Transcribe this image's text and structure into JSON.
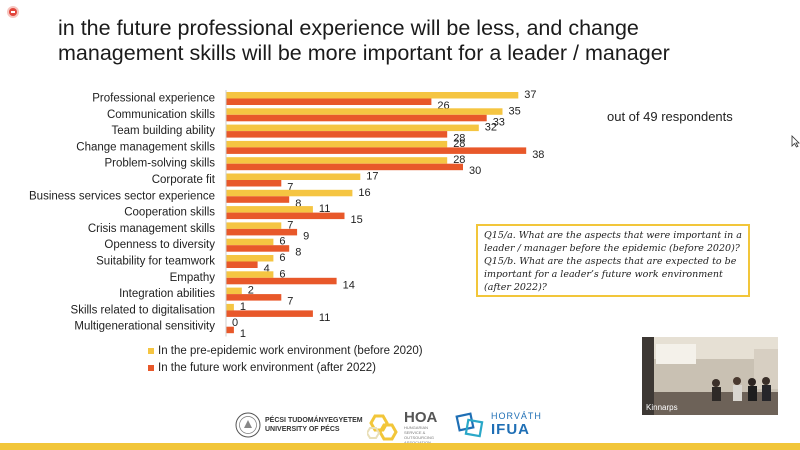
{
  "slide": {
    "title_line1": "in the future professional experience will be less, and change",
    "title_line2": "management skills will be more important for a leader / manager",
    "respondents_note": "out of 49 respondents",
    "question_a": "Q15/a. What are the aspects that were important in a leader / manager before the epidemic (before 2020)?",
    "question_b": "Q15/b. What are the aspects that are expected to be important for a leader’s future work environment (after 2022)?"
  },
  "chart_data": {
    "type": "bar",
    "orientation": "horizontal",
    "categories": [
      "Professional experience",
      "Communication skills",
      "Team building ability",
      "Change management skills",
      "Problem-solving skills",
      "Corporate fit",
      "Business services sector experience",
      "Cooperation skills",
      "Crisis management skills",
      "Openness to diversity",
      "Suitability for teamwork",
      "Empathy",
      "Integration abilities",
      "Skills related to digitalisation",
      "Multigenerational sensitivity"
    ],
    "series": [
      {
        "name": "In the pre-epidemic work environment (before 2020)",
        "color": "#f5c542",
        "values": [
          37,
          35,
          32,
          28,
          28,
          17,
          16,
          11,
          7,
          6,
          6,
          6,
          2,
          1,
          0
        ]
      },
      {
        "name": "In the future work environment (after 2022)",
        "color": "#e8582a",
        "values": [
          26,
          33,
          28,
          38,
          30,
          7,
          8,
          15,
          9,
          8,
          4,
          14,
          7,
          11,
          1
        ]
      }
    ],
    "xlim": [
      0,
      38
    ],
    "grid": false,
    "legend": "bottom-left",
    "data_labels": true
  },
  "video": {
    "label": "Kinnarps"
  },
  "logos": {
    "pte_line1": "PÉCSI TUDOMÁNYEGYETEM",
    "pte_line2": "UNIVERSITY OF PÉCS",
    "hoa_name": "HOA",
    "hoa_sub": "HUNGARIAN SERVICE & OUTSOURCING ASSOCIATION",
    "ifua_line1": "HORVÁTH",
    "ifua_line2": "IFUA"
  }
}
